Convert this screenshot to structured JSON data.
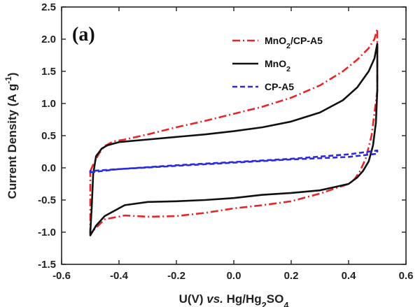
{
  "chart_data": {
    "type": "line",
    "panel_label": "(a)",
    "xlabel": "U(V) vs. Hg/Hg2SO4",
    "xlabel_parts": [
      {
        "text": "U(V) ",
        "style": "normal"
      },
      {
        "text": "vs.",
        "style": "italic"
      },
      {
        "text": " Hg/Hg",
        "style": "normal"
      },
      {
        "text": "2",
        "style": "sub"
      },
      {
        "text": "SO",
        "style": "normal"
      },
      {
        "text": "4",
        "style": "sub"
      }
    ],
    "ylabel": "Current Density (A g-1)",
    "ylabel_parts": [
      {
        "text": "Current Density (A g",
        "style": "normal"
      },
      {
        "text": "-1",
        "style": "sup"
      },
      {
        "text": ")",
        "style": "normal"
      }
    ],
    "xlim": [
      -0.6,
      0.6
    ],
    "ylim": [
      -1.5,
      2.5
    ],
    "x_ticks": [
      -0.6,
      -0.4,
      -0.2,
      0.0,
      0.2,
      0.4,
      0.6
    ],
    "x_tick_labels": [
      "-0.6",
      "-0.4",
      "-0.2",
      "0.0",
      "0.2",
      "0.4",
      "0.6"
    ],
    "y_ticks": [
      -1.5,
      -1.0,
      -0.5,
      0.0,
      0.5,
      1.0,
      1.5,
      2.0,
      2.5
    ],
    "y_tick_labels": [
      "-1.5",
      "-1.0",
      "-0.5",
      "0.0",
      "0.5",
      "1.0",
      "1.5",
      "2.0",
      "2.5"
    ],
    "grid": false,
    "legend_position": "top-right",
    "series": [
      {
        "name": "MnO2/CP-A5",
        "name_parts": [
          {
            "text": "MnO",
            "style": "normal"
          },
          {
            "text": "2",
            "style": "sub"
          },
          {
            "text": "/CP-A5",
            "style": "normal"
          }
        ],
        "color": "#e8262a",
        "dash": "dashdot",
        "x": [
          -0.5,
          -0.49,
          -0.47,
          -0.45,
          -0.42,
          -0.38,
          -0.3,
          -0.2,
          -0.1,
          0.0,
          0.1,
          0.2,
          0.3,
          0.38,
          0.43,
          0.47,
          0.49,
          0.5,
          0.5,
          0.48,
          0.46,
          0.44,
          0.42,
          0.4,
          0.3,
          0.2,
          0.1,
          0.0,
          -0.1,
          -0.2,
          -0.3,
          -0.38,
          -0.45,
          -0.5
        ],
        "y": [
          -0.05,
          0.05,
          0.22,
          0.34,
          0.41,
          0.44,
          0.52,
          0.63,
          0.73,
          0.84,
          0.95,
          1.09,
          1.28,
          1.5,
          1.68,
          1.86,
          2.0,
          2.16,
          1.2,
          0.5,
          0.15,
          -0.05,
          -0.18,
          -0.25,
          -0.4,
          -0.52,
          -0.58,
          -0.63,
          -0.7,
          -0.75,
          -0.76,
          -0.74,
          -0.8,
          -1.02
        ]
      },
      {
        "name": "MnO2",
        "name_parts": [
          {
            "text": "MnO",
            "style": "normal"
          },
          {
            "text": "2",
            "style": "sub"
          }
        ],
        "color": "#111111",
        "dash": "solid",
        "x": [
          -0.5,
          -0.495,
          -0.49,
          -0.48,
          -0.46,
          -0.44,
          -0.4,
          -0.3,
          -0.2,
          -0.1,
          0.0,
          0.1,
          0.2,
          0.3,
          0.38,
          0.43,
          0.47,
          0.49,
          0.5,
          0.5,
          0.495,
          0.485,
          0.47,
          0.45,
          0.43,
          0.4,
          0.35,
          0.3,
          0.2,
          0.1,
          0.0,
          -0.1,
          -0.2,
          -0.3,
          -0.38,
          -0.45,
          -0.48,
          -0.5
        ],
        "y": [
          -1.0,
          -0.6,
          -0.1,
          0.18,
          0.3,
          0.35,
          0.4,
          0.44,
          0.48,
          0.52,
          0.57,
          0.63,
          0.72,
          0.86,
          1.05,
          1.25,
          1.5,
          1.7,
          1.93,
          1.2,
          0.7,
          0.35,
          0.1,
          -0.05,
          -0.15,
          -0.25,
          -0.3,
          -0.35,
          -0.39,
          -0.42,
          -0.47,
          -0.5,
          -0.52,
          -0.53,
          -0.58,
          -0.75,
          -0.9,
          -1.05
        ]
      },
      {
        "name": "CP-A5",
        "name_parts": [
          {
            "text": "CP-A5",
            "style": "normal"
          }
        ],
        "color": "#2a2ae0",
        "dash": "dashed",
        "x": [
          -0.5,
          -0.4,
          -0.2,
          0.0,
          0.2,
          0.4,
          0.5,
          0.5,
          0.4,
          0.2,
          0.0,
          -0.2,
          -0.4,
          -0.5
        ],
        "y": [
          -0.07,
          -0.02,
          0.04,
          0.09,
          0.14,
          0.21,
          0.27,
          0.22,
          0.17,
          0.13,
          0.08,
          0.03,
          -0.02,
          -0.05
        ]
      }
    ]
  }
}
